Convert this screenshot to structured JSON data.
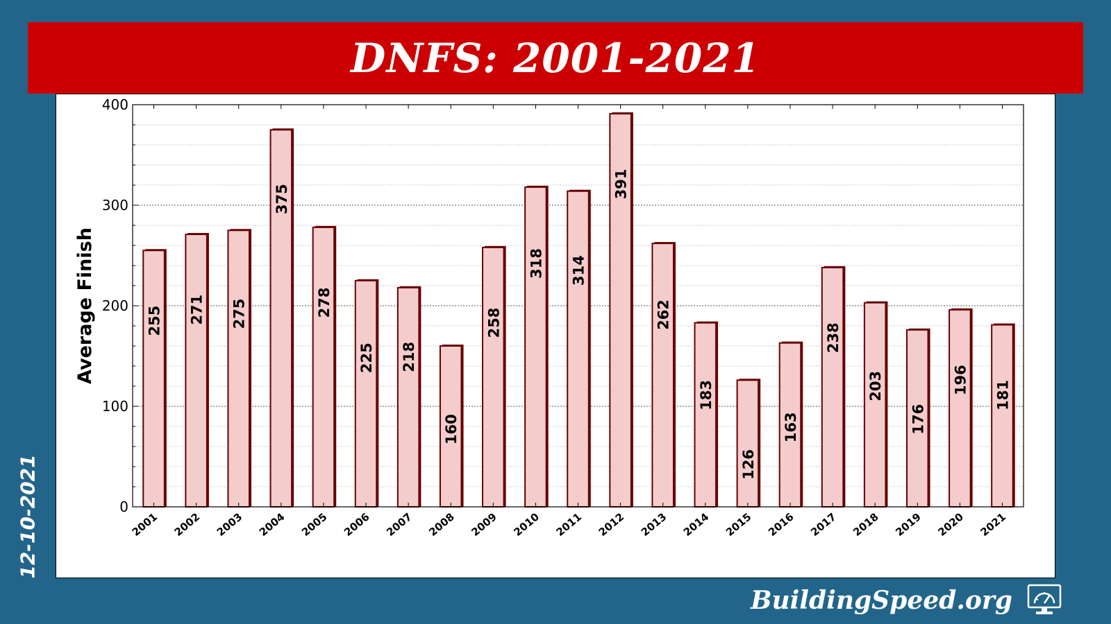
{
  "title": "DNFS: 2001-2021",
  "date_stamp": "12-10-2021",
  "brand": "BuildingSpeed.org",
  "colors": {
    "background": "#23658a",
    "banner": "#cc0000",
    "bar_fill": "#f4cccc",
    "bar_edge": "#660000"
  },
  "icons": {
    "brand_icon": "speedometer-monitor-icon"
  },
  "chart_data": {
    "type": "bar",
    "title": "DNFS: 2001-2021",
    "xlabel": "",
    "ylabel": "Average Finish",
    "ylim": [
      0,
      400
    ],
    "yticks": [
      0,
      100,
      200,
      300,
      400
    ],
    "grid": true,
    "categories": [
      "2001",
      "2002",
      "2003",
      "2004",
      "2005",
      "2006",
      "2007",
      "2008",
      "2009",
      "2010",
      "2011",
      "2012",
      "2013",
      "2014",
      "2015",
      "2016",
      "2017",
      "2018",
      "2019",
      "2020",
      "2021"
    ],
    "values": [
      255,
      271,
      275,
      375,
      278,
      225,
      218,
      160,
      258,
      318,
      314,
      391,
      262,
      183,
      126,
      163,
      238,
      203,
      176,
      196,
      181
    ],
    "label_positions": [
      170,
      181,
      177,
      291,
      188,
      133,
      134,
      62,
      168,
      227,
      220,
      306,
      176,
      96,
      27,
      64,
      153,
      105,
      72,
      111,
      96
    ]
  }
}
